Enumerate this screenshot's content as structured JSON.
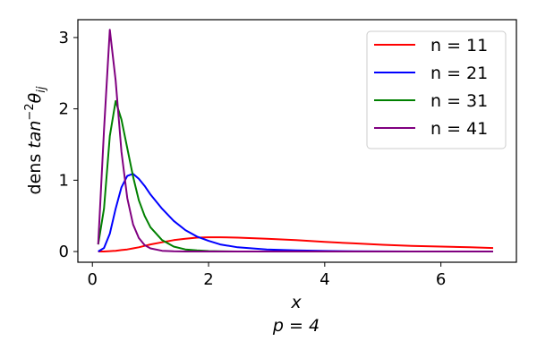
{
  "chart_data": {
    "type": "line",
    "title": "",
    "xlabel": "x",
    "subtitle": "p = 4",
    "ylabel": "dens tan^{-2}θ_ij",
    "ylabel_parts": {
      "prefix": "dens ",
      "func": "tan",
      "sup": "−2",
      "theta": "θ",
      "sub": "ij"
    },
    "xlim": [
      -0.25,
      7.3
    ],
    "ylim": [
      -0.15,
      3.25
    ],
    "xticks": [
      0,
      2,
      4,
      6
    ],
    "yticks": [
      0,
      1,
      2,
      3
    ],
    "grid": false,
    "legend_position": "upper right",
    "x": [
      0.1,
      0.2,
      0.3,
      0.4,
      0.5,
      0.6,
      0.7,
      0.8,
      0.9,
      1.0,
      1.2,
      1.4,
      1.6,
      1.8,
      2.0,
      2.2,
      2.5,
      3.0,
      3.5,
      4.0,
      4.5,
      5.0,
      5.5,
      6.0,
      6.5,
      6.9
    ],
    "series": [
      {
        "name": "n = 11",
        "color": "#ff0000",
        "values": [
          0.0,
          0.0,
          0.005,
          0.01,
          0.02,
          0.03,
          0.045,
          0.06,
          0.08,
          0.1,
          0.13,
          0.16,
          0.18,
          0.195,
          0.2,
          0.2,
          0.195,
          0.18,
          0.16,
          0.135,
          0.115,
          0.095,
          0.08,
          0.07,
          0.06,
          0.05
        ]
      },
      {
        "name": "n = 21",
        "color": "#0000ff",
        "values": [
          0.0,
          0.05,
          0.25,
          0.6,
          0.9,
          1.06,
          1.09,
          1.02,
          0.92,
          0.8,
          0.6,
          0.43,
          0.3,
          0.21,
          0.15,
          0.1,
          0.06,
          0.03,
          0.015,
          0.008,
          0.004,
          0.002,
          0.001,
          0.0,
          0.0,
          0.0
        ]
      },
      {
        "name": "n = 31",
        "color": "#008000",
        "values": [
          0.1,
          0.6,
          1.62,
          2.11,
          1.85,
          1.45,
          1.05,
          0.72,
          0.5,
          0.34,
          0.16,
          0.07,
          0.03,
          0.015,
          0.007,
          0.003,
          0.001,
          0.0,
          0.0,
          0.0,
          0.0,
          0.0,
          0.0,
          0.0,
          0.0,
          0.0
        ]
      },
      {
        "name": "n = 41",
        "color": "#800080",
        "values": [
          0.1,
          1.7,
          3.11,
          2.4,
          1.4,
          0.75,
          0.38,
          0.19,
          0.09,
          0.045,
          0.01,
          0.003,
          0.001,
          0.0,
          0.0,
          0.0,
          0.0,
          0.0,
          0.0,
          0.0,
          0.0,
          0.0,
          0.0,
          0.0,
          0.0,
          0.0
        ]
      }
    ]
  }
}
